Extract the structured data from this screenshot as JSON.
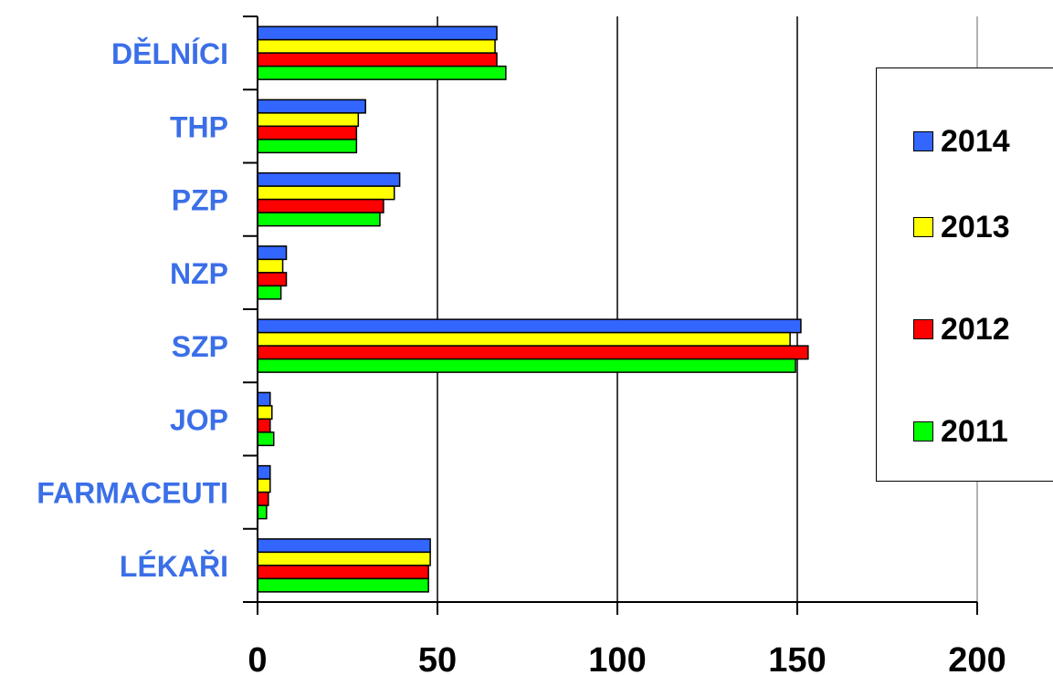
{
  "chart_data": {
    "type": "bar",
    "orientation": "horizontal",
    "categories": [
      "DĚLNÍCI",
      "THP",
      "PZP",
      "NZP",
      "SZP",
      "JOP",
      "FARMACEUTI",
      "LÉKAŘI"
    ],
    "series": [
      {
        "name": "2014",
        "color": "#3366ff",
        "values": [
          66.5,
          30,
          39.5,
          8,
          151,
          3.5,
          3.5,
          48
        ]
      },
      {
        "name": "2013",
        "color": "#ffff00",
        "values": [
          66,
          28,
          38,
          7,
          148,
          4,
          3.5,
          48
        ]
      },
      {
        "name": "2012",
        "color": "#ff0000",
        "values": [
          66.5,
          27.5,
          35,
          8,
          153,
          3.5,
          3,
          47.5
        ]
      },
      {
        "name": "2011",
        "color": "#00ff00",
        "values": [
          69,
          27.5,
          34,
          6.5,
          149.5,
          4.5,
          2.5,
          47.5
        ]
      }
    ],
    "xlim": [
      0,
      200
    ],
    "xticks": [
      "0",
      "50",
      "100",
      "150",
      "200"
    ],
    "grid": "vertical lines at major ticks",
    "legend_position": "right",
    "title": "",
    "xlabel": "",
    "ylabel": "",
    "category_label_color": "#3b6fe8"
  }
}
